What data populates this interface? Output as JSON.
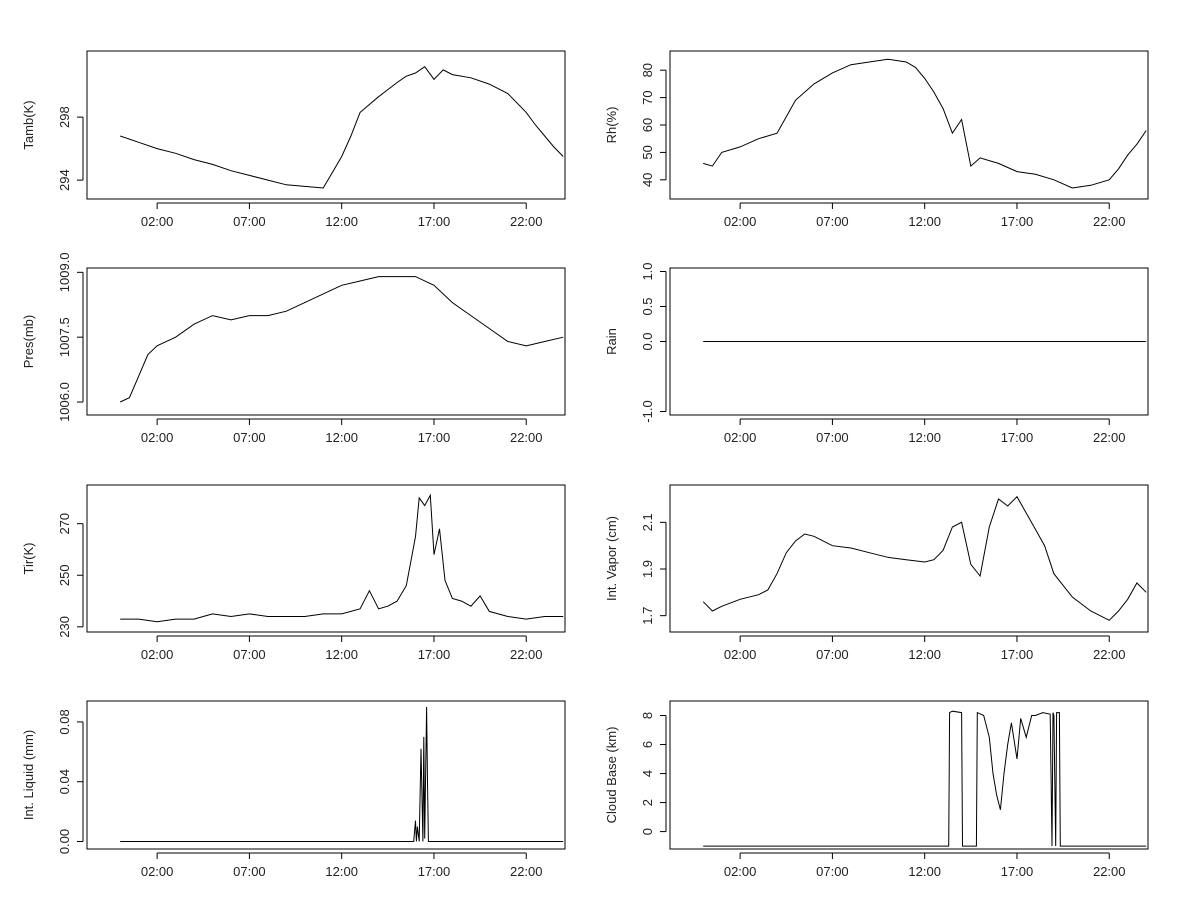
{
  "chart_data": [
    {
      "type": "line",
      "ylabel": "Tamb(K)",
      "xticks": [
        "02:00",
        "07:00",
        "12:00",
        "17:00",
        "22:00"
      ],
      "xlim": [
        -1.8,
        24.1
      ],
      "ylim": [
        292.8,
        302.2
      ],
      "yticks": [
        294,
        298
      ],
      "yticklabels": [
        "294",
        "298"
      ],
      "x": [
        0,
        1,
        2,
        3,
        4,
        5,
        6,
        7,
        8,
        9,
        10,
        11,
        11.5,
        12,
        12.5,
        13,
        14,
        15,
        15.5,
        16,
        16.5,
        17,
        17.5,
        18,
        19,
        20,
        21,
        22,
        22.5,
        23,
        23.5,
        24
      ],
      "values": [
        296.8,
        296.4,
        296.0,
        295.7,
        295.3,
        295.0,
        294.6,
        294.3,
        294.0,
        293.7,
        293.6,
        293.5,
        294.5,
        295.5,
        296.8,
        298.3,
        299.3,
        300.2,
        300.6,
        300.8,
        301.2,
        300.4,
        301.0,
        300.7,
        300.5,
        300.1,
        299.5,
        298.3,
        297.5,
        296.8,
        296.1,
        295.5
      ]
    },
    {
      "type": "line",
      "ylabel": "Rh(%)",
      "xticks": [
        "02:00",
        "07:00",
        "12:00",
        "17:00",
        "22:00"
      ],
      "xlim": [
        -1.8,
        24.1
      ],
      "ylim": [
        33,
        87
      ],
      "yticks": [
        40,
        50,
        60,
        70,
        80
      ],
      "yticklabels": [
        "40",
        "50",
        "60",
        "70",
        "80"
      ],
      "x": [
        0,
        0.5,
        1,
        2,
        3,
        4,
        4.5,
        5,
        6,
        7,
        8,
        9,
        10,
        11,
        11.5,
        12,
        12.5,
        13,
        13.5,
        14,
        14.5,
        15,
        16,
        17,
        18,
        19,
        20,
        21,
        22,
        22.5,
        23,
        23.5,
        24
      ],
      "values": [
        46,
        45,
        50,
        52,
        55,
        57,
        63,
        69,
        75,
        79,
        82,
        83,
        84,
        83,
        81,
        77,
        72,
        66,
        57,
        62,
        45,
        48,
        46,
        43,
        42,
        40,
        37,
        38,
        40,
        44,
        49,
        53,
        58
      ]
    },
    {
      "type": "line",
      "ylabel": "Pres(mb)",
      "xticks": [
        "02:00",
        "07:00",
        "12:00",
        "17:00",
        "22:00"
      ],
      "xlim": [
        -1.8,
        24.1
      ],
      "ylim": [
        1005.7,
        1009.1
      ],
      "yticks": [
        1006.0,
        1007.5,
        1009.0
      ],
      "yticklabels": [
        "1006.0",
        "1007.5",
        "1009.0"
      ],
      "x": [
        0,
        0.5,
        1,
        1.5,
        2,
        3,
        4,
        5,
        6,
        7,
        8,
        9,
        10,
        11,
        12,
        13,
        14,
        15,
        16,
        17,
        18,
        19,
        20,
        21,
        22,
        23,
        24
      ],
      "values": [
        1006.0,
        1006.1,
        1006.6,
        1007.1,
        1007.3,
        1007.5,
        1007.8,
        1008.0,
        1007.9,
        1008.0,
        1008.0,
        1008.1,
        1008.3,
        1008.5,
        1008.7,
        1008.8,
        1008.9,
        1008.9,
        1008.9,
        1008.7,
        1008.3,
        1008.0,
        1007.7,
        1007.4,
        1007.3,
        1007.4,
        1007.5
      ]
    },
    {
      "type": "line",
      "ylabel": "Rain",
      "xticks": [
        "02:00",
        "07:00",
        "12:00",
        "17:00",
        "22:00"
      ],
      "xlim": [
        -1.8,
        24.1
      ],
      "ylim": [
        -1.05,
        1.05
      ],
      "yticks": [
        -1.0,
        0.0,
        0.5,
        1.0
      ],
      "yticklabels": [
        "-1.0",
        "0.0",
        "0.5",
        "1.0"
      ],
      "x": [
        0,
        24
      ],
      "values": [
        0,
        0
      ]
    },
    {
      "type": "line",
      "ylabel": "Tir(K)",
      "xticks": [
        "02:00",
        "07:00",
        "12:00",
        "17:00",
        "22:00"
      ],
      "xlim": [
        -1.8,
        24.1
      ],
      "ylim": [
        228,
        285
      ],
      "yticks": [
        230,
        250,
        270
      ],
      "yticklabels": [
        "230",
        "250",
        "270"
      ],
      "x": [
        0,
        1,
        2,
        3,
        4,
        5,
        6,
        7,
        8,
        9,
        10,
        11,
        12,
        13,
        13.5,
        14,
        14.5,
        15,
        15.5,
        16,
        16.2,
        16.5,
        16.8,
        17,
        17.3,
        17.6,
        18,
        18.5,
        19,
        19.5,
        20,
        21,
        22,
        23,
        24
      ],
      "values": [
        233,
        233,
        232,
        233,
        233,
        235,
        234,
        235,
        234,
        234,
        234,
        235,
        235,
        237,
        244,
        237,
        238,
        240,
        246,
        265,
        280,
        277,
        281,
        258,
        268,
        248,
        241,
        240,
        238,
        242,
        236,
        234,
        233,
        234,
        234
      ]
    },
    {
      "type": "line",
      "ylabel": "Int. Vapor (cm)",
      "xticks": [
        "02:00",
        "07:00",
        "12:00",
        "17:00",
        "22:00"
      ],
      "xlim": [
        -1.8,
        24.1
      ],
      "ylim": [
        1.63,
        2.26
      ],
      "yticks": [
        1.7,
        1.9,
        2.1
      ],
      "yticklabels": [
        "1.7",
        "1.9",
        "2.1"
      ],
      "x": [
        0,
        0.5,
        1,
        2,
        3,
        3.5,
        4,
        4.5,
        5,
        5.5,
        6,
        7,
        8,
        9,
        10,
        11,
        12,
        12.5,
        13,
        13.5,
        14,
        14.5,
        15,
        15.5,
        16,
        16.5,
        17,
        17.5,
        18,
        18.5,
        19,
        20,
        21,
        22,
        22.5,
        23,
        23.5,
        24
      ],
      "values": [
        1.76,
        1.72,
        1.74,
        1.77,
        1.79,
        1.81,
        1.88,
        1.97,
        2.02,
        2.05,
        2.04,
        2.0,
        1.99,
        1.97,
        1.95,
        1.94,
        1.93,
        1.94,
        1.98,
        2.08,
        2.1,
        1.92,
        1.87,
        2.08,
        2.2,
        2.17,
        2.21,
        2.14,
        2.07,
        2.0,
        1.88,
        1.78,
        1.72,
        1.68,
        1.72,
        1.77,
        1.84,
        1.8
      ]
    },
    {
      "type": "line",
      "ylabel": "Int. Liquid (mm)",
      "xticks": [
        "02:00",
        "07:00",
        "12:00",
        "17:00",
        "22:00"
      ],
      "xlim": [
        -1.8,
        24.1
      ],
      "ylim": [
        -0.005,
        0.094
      ],
      "yticks": [
        0.0,
        0.04,
        0.08
      ],
      "yticklabels": [
        "0.00",
        "0.04",
        "0.08"
      ],
      "x": [
        0,
        15.9,
        16.0,
        16.05,
        16.1,
        16.2,
        16.3,
        16.35,
        16.4,
        16.45,
        16.5,
        16.6,
        16.65,
        16.7,
        16.8,
        24
      ],
      "values": [
        0,
        0,
        0.014,
        0,
        0.01,
        0,
        0.062,
        0.03,
        0,
        0.07,
        0.002,
        0.09,
        0.04,
        0,
        0,
        0
      ]
    },
    {
      "type": "line",
      "ylabel": "Cloud Base (km)",
      "xticks": [
        "02:00",
        "07:00",
        "12:00",
        "17:00",
        "22:00"
      ],
      "xlim": [
        -1.8,
        24.1
      ],
      "ylim": [
        -1.2,
        9.0
      ],
      "yticks": [
        0,
        2,
        4,
        6,
        8
      ],
      "yticklabels": [
        "0",
        "2",
        "4",
        "6",
        "8"
      ],
      "x": [
        0,
        13.3,
        13.35,
        13.5,
        14.0,
        14.05,
        14.8,
        14.85,
        15.2,
        15.5,
        15.7,
        15.9,
        16.1,
        16.3,
        16.5,
        16.7,
        17.0,
        17.2,
        17.5,
        17.8,
        18.0,
        18.4,
        18.8,
        18.9,
        18.95,
        19.0,
        19.1,
        19.15,
        19.3,
        19.35,
        24
      ],
      "values": [
        -1,
        -1,
        8.2,
        8.3,
        8.2,
        -1,
        -1,
        8.2,
        8.0,
        6.5,
        4.0,
        2.5,
        1.5,
        4.0,
        6.0,
        7.5,
        5.0,
        7.8,
        6.5,
        8.0,
        8.0,
        8.2,
        8.1,
        -1,
        8.2,
        8.0,
        -1,
        8.2,
        8.2,
        -1,
        -1
      ]
    }
  ]
}
